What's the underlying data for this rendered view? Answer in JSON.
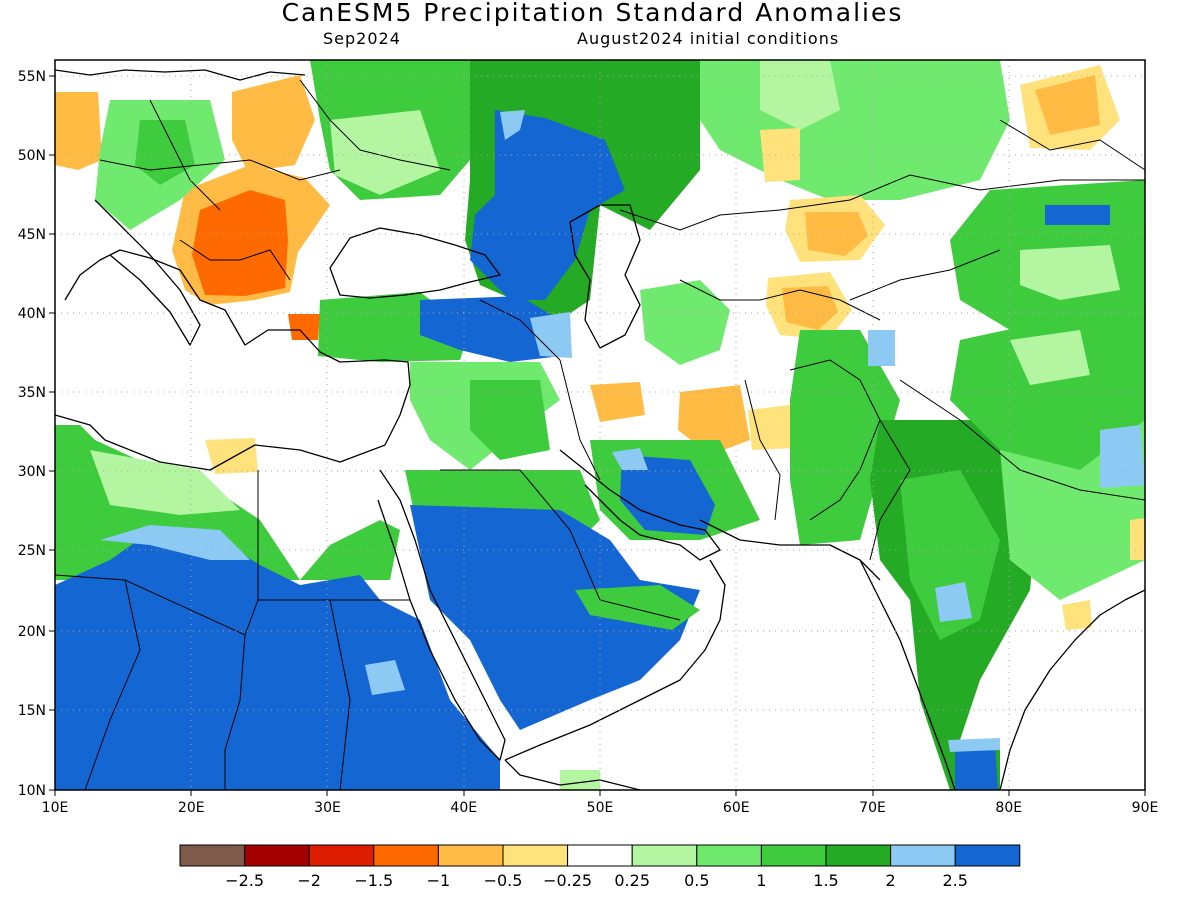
{
  "header": {
    "title": "CanESM5 Precipitation Standard Anomalies",
    "subtitle_left": "Sep2024",
    "subtitle_right": "August2024 initial conditions"
  },
  "axes": {
    "lon_labels": [
      "10E",
      "20E",
      "30E",
      "40E",
      "50E",
      "60E",
      "70E",
      "80E",
      "90E"
    ],
    "lat_labels": [
      "55N",
      "50N",
      "45N",
      "40N",
      "35N",
      "30N",
      "25N",
      "20N",
      "15N",
      "10N"
    ]
  },
  "colorbar": {
    "colors": [
      "#7f5a4a",
      "#a50000",
      "#dd1c00",
      "#ff6a00",
      "#ffbb44",
      "#ffe27c",
      "#ffffff",
      "#b4f5a2",
      "#70ea6e",
      "#3ecb3e",
      "#24aa24",
      "#8ccaf4",
      "#1466d2"
    ],
    "labels": [
      "−2.5",
      "−2",
      "−1.5",
      "−1",
      "−0.5",
      "−0.25",
      "0.25",
      "0.5",
      "1",
      "1.5",
      "2",
      "2.5"
    ]
  },
  "map_colors": {
    "dark_brown": "#7f5a4a",
    "dark_red": "#a50000",
    "red": "#dd1c00",
    "orange": "#ff6a00",
    "light_orange": "#ffbb44",
    "yellow": "#ffe27c",
    "white": "#ffffff",
    "pale_green": "#b4f5a2",
    "light_green": "#70ea6e",
    "green": "#3ecb3e",
    "dark_green": "#24aa24",
    "light_blue": "#8ccaf4",
    "blue": "#1466d2"
  }
}
